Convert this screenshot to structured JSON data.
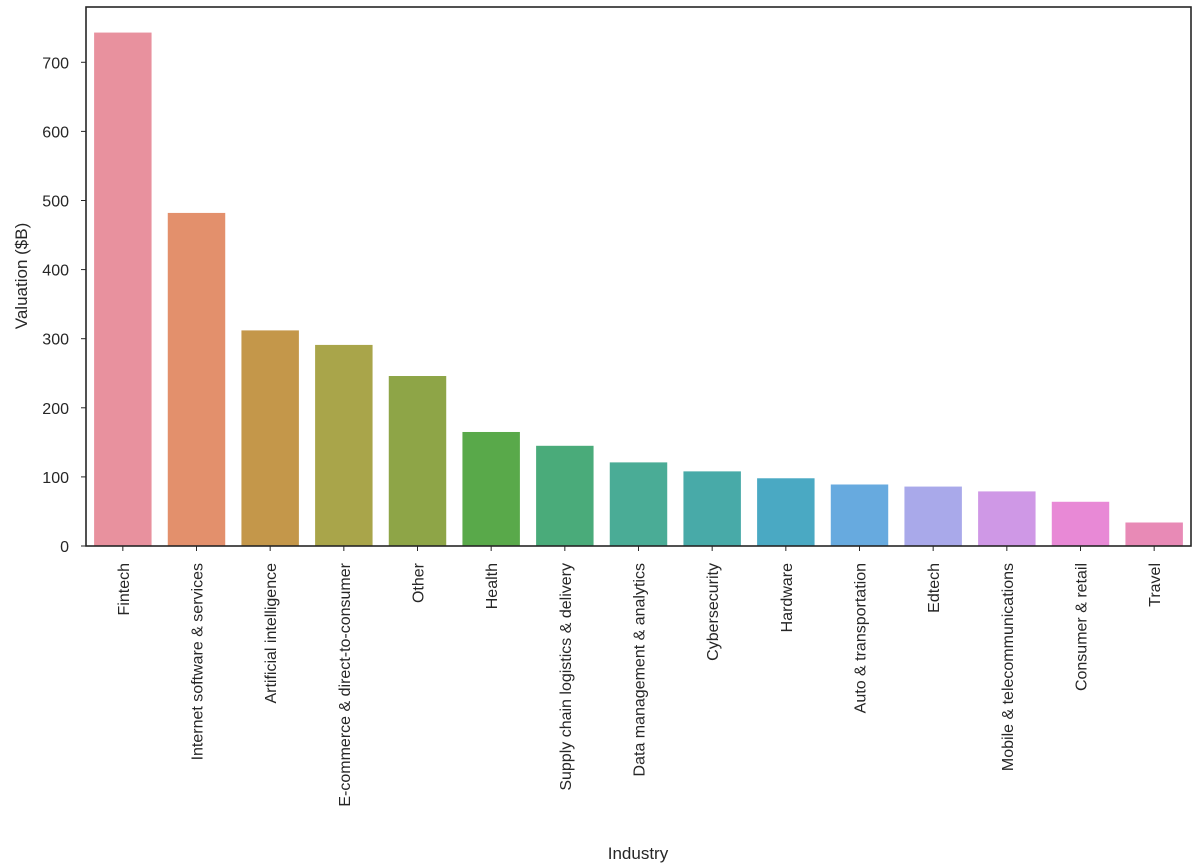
{
  "chart_data": {
    "type": "bar",
    "xlabel": "Industry",
    "ylabel": "Valuation ($B)",
    "ylim": [
      0,
      780
    ],
    "yticks": [
      0,
      100,
      200,
      300,
      400,
      500,
      600,
      700
    ],
    "grid": false,
    "categories": [
      "Fintech",
      "Internet software & services",
      "Artificial intelligence",
      "E-commerce & direct-to-consumer",
      "Other",
      "Health",
      "Supply chain logistics & delivery",
      "Data management & analytics",
      "Cybersecurity",
      "Hardware",
      "Auto & transportation",
      "Edtech",
      "Mobile & telecommunications",
      "Consumer & retail",
      "Travel"
    ],
    "values": [
      743,
      482,
      312,
      291,
      246,
      165,
      145,
      121,
      108,
      98,
      89,
      86,
      79,
      64,
      34
    ],
    "colors": [
      "#e8919e",
      "#e3906c",
      "#c4974a",
      "#a9a54a",
      "#8ea547",
      "#59a94a",
      "#4aab7a",
      "#4aac96",
      "#48aaa8",
      "#4aa9c3",
      "#67aadf",
      "#a9a9ea",
      "#cf98e6",
      "#e889d6",
      "#e88ab6"
    ]
  }
}
